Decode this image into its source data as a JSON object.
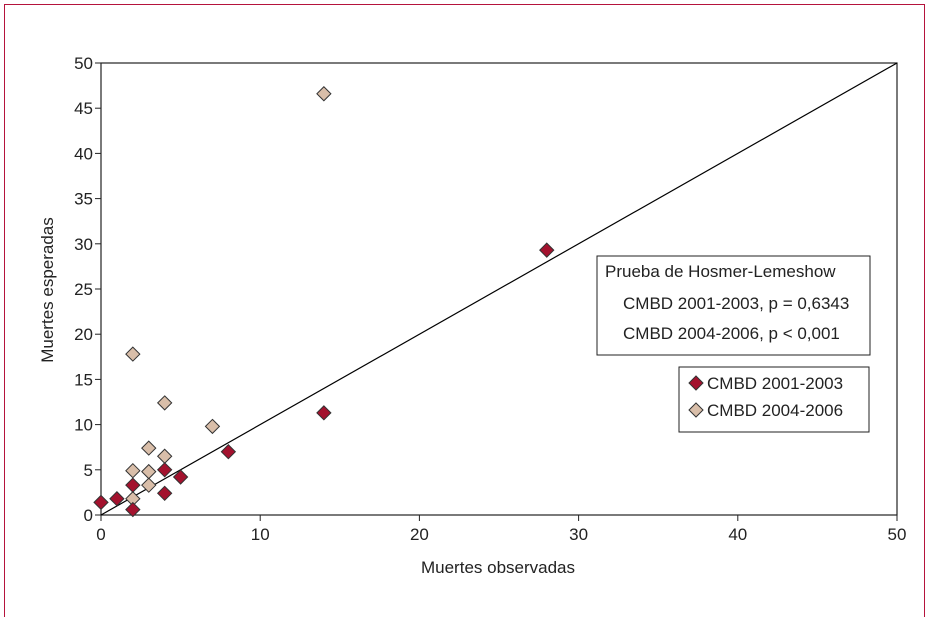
{
  "chart_data": {
    "type": "scatter",
    "xlabel": "Muertes observadas",
    "ylabel": "Muertes esperadas",
    "xlim": [
      0,
      50
    ],
    "ylim": [
      0,
      50
    ],
    "xticks": [
      0,
      10,
      20,
      30,
      40,
      50
    ],
    "yticks": [
      0,
      5,
      10,
      15,
      20,
      25,
      30,
      35,
      40,
      45,
      50
    ],
    "reference_line": {
      "from": [
        0,
        0
      ],
      "to": [
        50,
        50
      ]
    },
    "series": [
      {
        "name": "CMBD 2001-2003",
        "color": "#a3122e",
        "points": [
          [
            0,
            1.4
          ],
          [
            1,
            1.8
          ],
          [
            2,
            0.6
          ],
          [
            2,
            3.3
          ],
          [
            4,
            2.4
          ],
          [
            4,
            5.0
          ],
          [
            5,
            4.2
          ],
          [
            8,
            7.0
          ],
          [
            14,
            11.3
          ],
          [
            28,
            29.3
          ]
        ]
      },
      {
        "name": "CMBD 2004-2006",
        "color": "#d9bea9",
        "points": [
          [
            2,
            1.8
          ],
          [
            2,
            4.9
          ],
          [
            2,
            17.8
          ],
          [
            3,
            3.3
          ],
          [
            3,
            4.8
          ],
          [
            3,
            7.4
          ],
          [
            4,
            6.5
          ],
          [
            4,
            12.4
          ],
          [
            7,
            9.8
          ],
          [
            14,
            46.6
          ]
        ]
      }
    ],
    "stats_box": {
      "title": "Prueba de Hosmer-Lemeshow",
      "line1": "CMBD 2001-2003, p = 0,6343",
      "line2": "CMBD 2004-2006, p < 0,001"
    },
    "legend_placement": "right"
  }
}
